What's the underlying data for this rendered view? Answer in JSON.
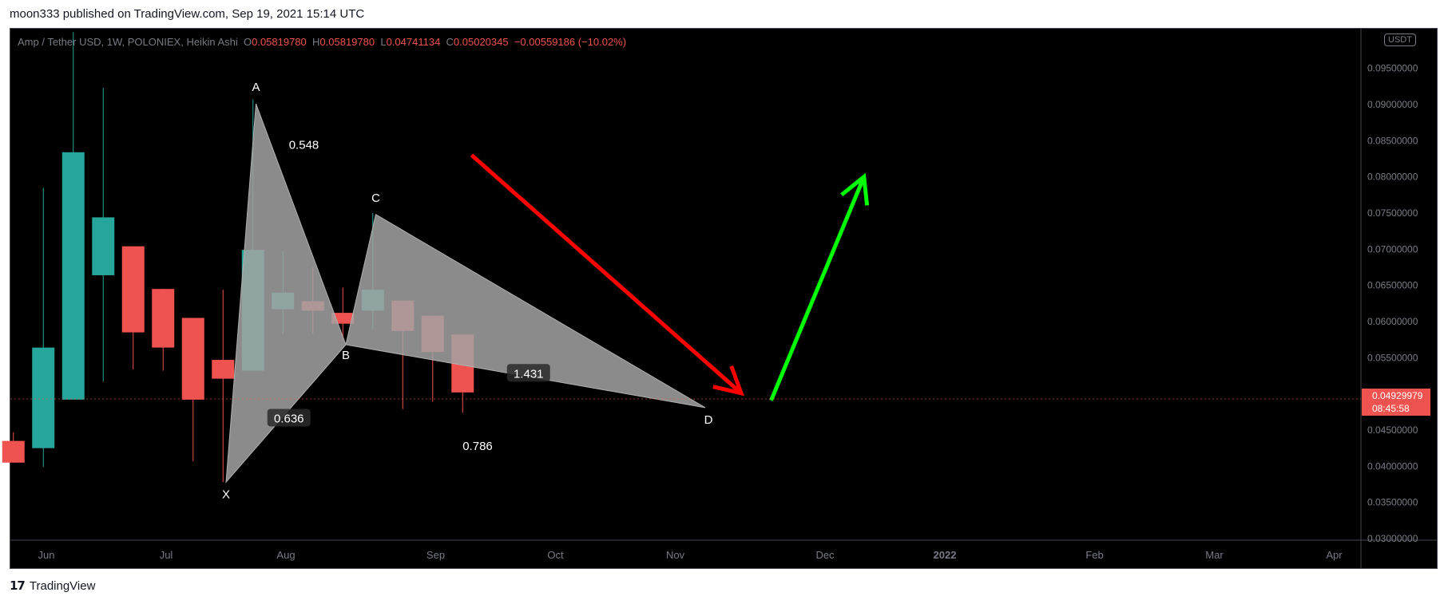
{
  "header": {
    "published": "moon333 published on TradingView.com, Sep 19, 2021 15:14 UTC"
  },
  "legend": {
    "symbol": "Amp / Tether USD, 1W, POLONIEX, Heikin Ashi",
    "o_label": "O",
    "o": "0.05819780",
    "h_label": "H",
    "h": "0.05819780",
    "l_label": "L",
    "l": "0.04741134",
    "c_label": "C",
    "c": "0.05020345",
    "change": "−0.00559186 (−10.02%)"
  },
  "price_axis": {
    "currency": "USDT"
  },
  "last_price": {
    "value": "0.04929979",
    "countdown": "08:45:58"
  },
  "footer": {
    "logo_mark": "17",
    "brand": "TradingView"
  },
  "colors": {
    "up": "#26a69a",
    "down": "#ef5350",
    "background": "#000000",
    "pattern_fill": "#a3a3a3",
    "arrow_down": "#ff0000",
    "arrow_up": "#00ff00"
  },
  "chart_data": {
    "type": "candlestick",
    "style": "Heikin Ashi",
    "interval": "1W",
    "exchange": "POLONIEX",
    "y_axis": {
      "range": [
        0.03,
        0.0965
      ],
      "ticks": [
        "0.03000000",
        "0.03500000",
        "0.04000000",
        "0.04500000",
        "0.05000000",
        "0.05500000",
        "0.06000000",
        "0.06500000",
        "0.07000000",
        "0.07500000",
        "0.08000000",
        "0.08500000",
        "0.09000000",
        "0.09500000"
      ]
    },
    "x_axis": {
      "ticks": [
        {
          "label": "Jun",
          "week": 0.4
        },
        {
          "label": "Jul",
          "week": 4.4
        },
        {
          "label": "Aug",
          "week": 8.4
        },
        {
          "label": "Sep",
          "week": 13.4
        },
        {
          "label": "Oct",
          "week": 17.4
        },
        {
          "label": "Nov",
          "week": 21.4
        },
        {
          "label": "Dec",
          "week": 26.4,
          "bold": false
        },
        {
          "label": "2022",
          "week": 30.4,
          "bold": true
        },
        {
          "label": "Feb",
          "week": 35.4
        },
        {
          "label": "Mar",
          "week": 39.4
        },
        {
          "label": "Apr",
          "week": 43.4
        }
      ]
    },
    "candles": [
      {
        "week": -0.7,
        "o": 0.0435,
        "h": 0.0447,
        "l": 0.0405,
        "c": 0.0405
      },
      {
        "week": 0.3,
        "o": 0.0425,
        "h": 0.0785,
        "l": 0.0399,
        "c": 0.0564
      },
      {
        "week": 1.3,
        "o": 0.0492,
        "h": 0.1,
        "l": 0.0492,
        "c": 0.0834
      },
      {
        "week": 2.3,
        "o": 0.0664,
        "h": 0.0923,
        "l": 0.0517,
        "c": 0.0744
      },
      {
        "week": 3.3,
        "o": 0.0704,
        "h": 0.0704,
        "l": 0.0534,
        "c": 0.0585
      },
      {
        "week": 4.3,
        "o": 0.0645,
        "h": 0.0645,
        "l": 0.0532,
        "c": 0.0564
      },
      {
        "week": 5.3,
        "o": 0.0605,
        "h": 0.0605,
        "l": 0.0407,
        "c": 0.0492
      },
      {
        "week": 6.3,
        "o": 0.0547,
        "h": 0.0644,
        "l": 0.0378,
        "c": 0.0521
      },
      {
        "week": 7.3,
        "o": 0.0532,
        "h": 0.0907,
        "l": 0.0532,
        "c": 0.0699
      },
      {
        "week": 8.3,
        "o": 0.0617,
        "h": 0.0697,
        "l": 0.0583,
        "c": 0.064
      },
      {
        "week": 9.3,
        "o": 0.0628,
        "h": 0.0675,
        "l": 0.0583,
        "c": 0.0615
      },
      {
        "week": 10.3,
        "o": 0.0612,
        "h": 0.0647,
        "l": 0.0574,
        "c": 0.0597
      },
      {
        "week": 11.3,
        "o": 0.0615,
        "h": 0.075,
        "l": 0.0589,
        "c": 0.0644
      },
      {
        "week": 12.3,
        "o": 0.0629,
        "h": 0.0629,
        "l": 0.0479,
        "c": 0.0587
      },
      {
        "week": 13.3,
        "o": 0.0608,
        "h": 0.0608,
        "l": 0.0489,
        "c": 0.0558
      },
      {
        "week": 14.3,
        "o": 0.0582,
        "h": 0.0582,
        "l": 0.0474,
        "c": 0.0502
      }
    ],
    "pattern": {
      "points": [
        {
          "label": "X",
          "week": 6.4,
          "price": 0.0378
        },
        {
          "label": "A",
          "week": 7.4,
          "price": 0.0901
        },
        {
          "label": "B",
          "week": 10.4,
          "price": 0.0568
        },
        {
          "label": "C",
          "week": 11.4,
          "price": 0.0748
        },
        {
          "label": "D",
          "week": 22.4,
          "price": 0.0481
        }
      ],
      "ratios": [
        {
          "text": "0.548",
          "week": 9.0,
          "price": 0.0844,
          "boxed": false
        },
        {
          "text": "0.636",
          "week": 8.5,
          "price": 0.0466,
          "boxed": true
        },
        {
          "text": "1.431",
          "week": 16.5,
          "price": 0.0528,
          "boxed": true
        },
        {
          "text": "0.786",
          "week": 14.8,
          "price": 0.0428,
          "boxed": false
        }
      ]
    },
    "arrows": [
      {
        "direction": "down",
        "from_week": 14.6,
        "from_price": 0.083,
        "to_week": 23.6,
        "to_price": 0.0501,
        "color": "#ff0000"
      },
      {
        "direction": "up",
        "from_week": 24.6,
        "from_price": 0.0491,
        "to_week": 27.7,
        "to_price": 0.08,
        "color": "#00ff00"
      }
    ],
    "last_price": 0.04929979
  }
}
